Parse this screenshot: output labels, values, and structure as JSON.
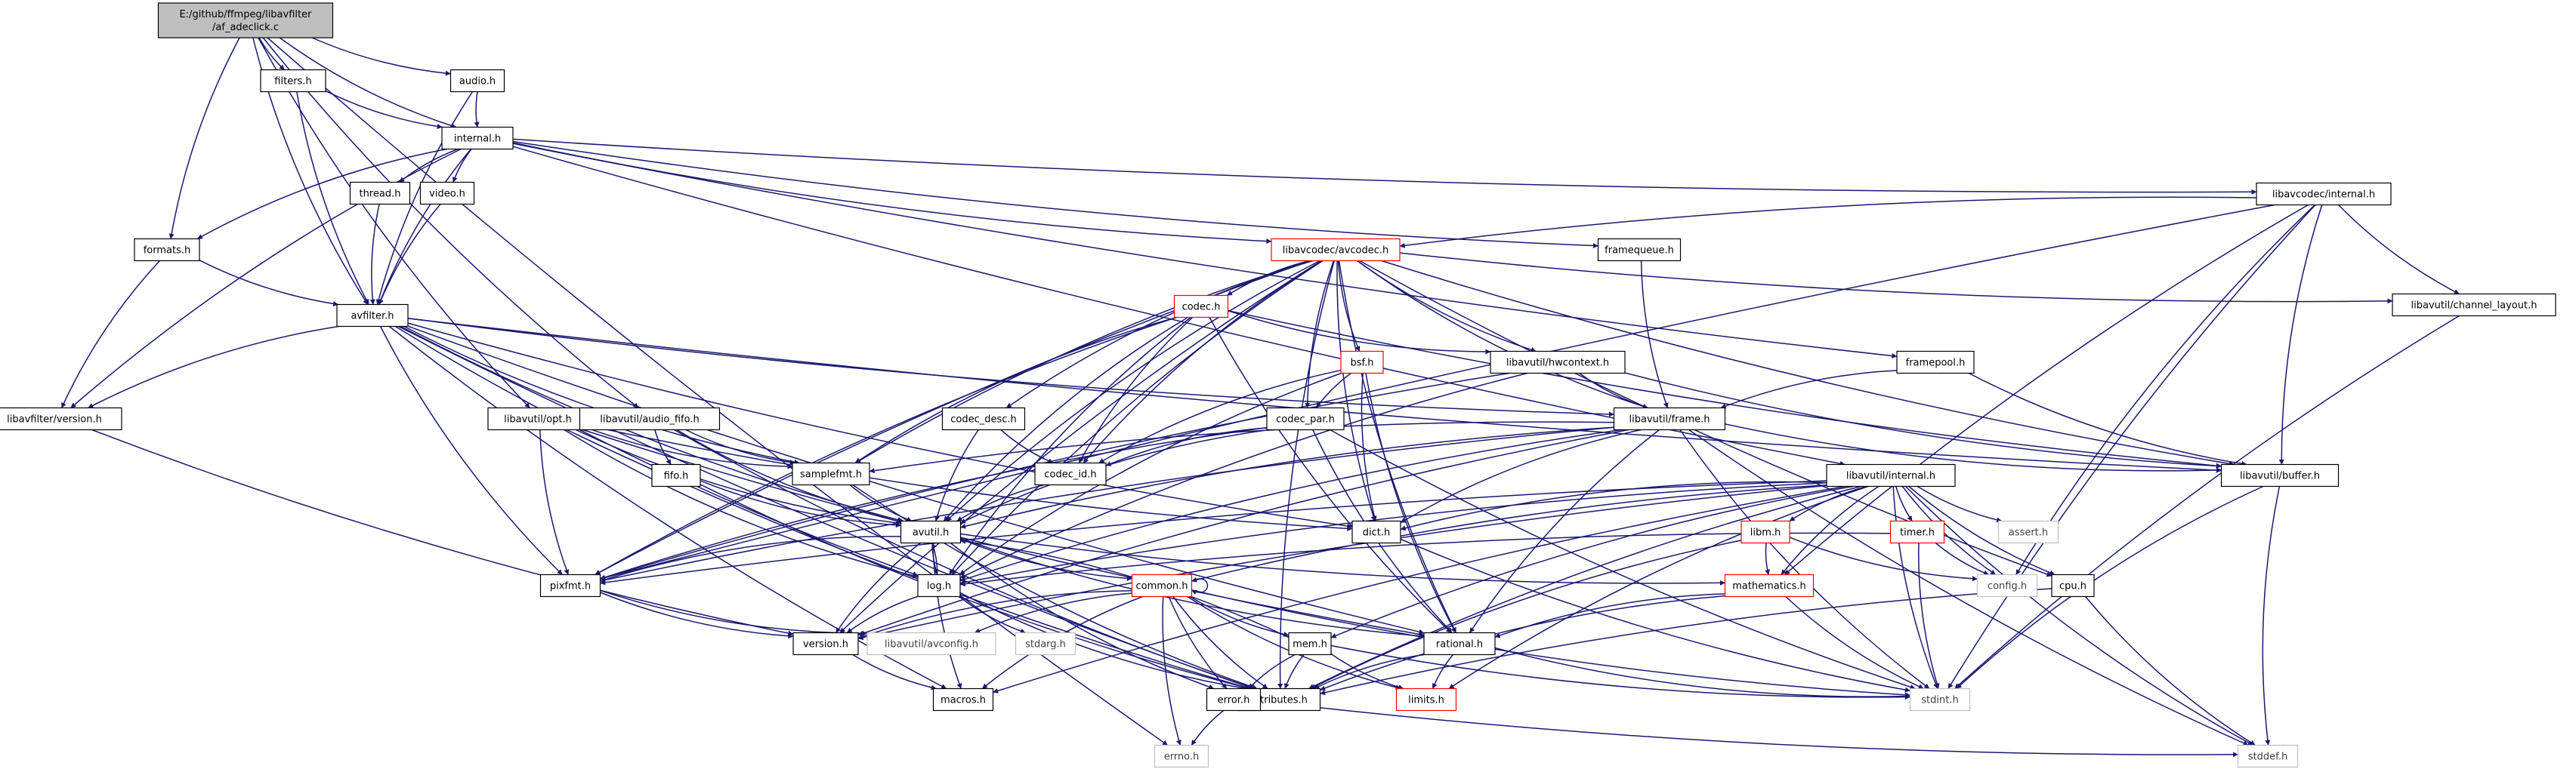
{
  "diagram": {
    "colors": {
      "edge": "#191970",
      "node_border": "#000000",
      "root_fill": "#bfbfbf",
      "truncated_border": "#ff0000",
      "external_border": "#bfbfbf",
      "external_text": "#404040"
    },
    "nodes": [
      {
        "id": "root",
        "lines": [
          "E:/github/ffmpeg/libavfilter",
          "/af_adeclick.c"
        ],
        "style": "root"
      },
      {
        "id": "filters_h",
        "lines": [
          "filters.h"
        ],
        "style": "normal"
      },
      {
        "id": "audio_h",
        "lines": [
          "audio.h"
        ],
        "style": "normal"
      },
      {
        "id": "internal_h",
        "lines": [
          "internal.h"
        ],
        "style": "normal"
      },
      {
        "id": "thread_h",
        "lines": [
          "thread.h"
        ],
        "style": "normal"
      },
      {
        "id": "video_h",
        "lines": [
          "video.h"
        ],
        "style": "normal"
      },
      {
        "id": "formats_h",
        "lines": [
          "formats.h"
        ],
        "style": "normal"
      },
      {
        "id": "avfilter_h",
        "lines": [
          "avfilter.h"
        ],
        "style": "normal"
      },
      {
        "id": "lavf_version_h",
        "lines": [
          "libavfilter/version.h"
        ],
        "style": "normal"
      },
      {
        "id": "opt_h",
        "lines": [
          "libavutil/opt.h"
        ],
        "style": "normal"
      },
      {
        "id": "audio_fifo_h",
        "lines": [
          "libavutil/audio_fifo.h"
        ],
        "style": "normal"
      },
      {
        "id": "fifo_h",
        "lines": [
          "fifo.h"
        ],
        "style": "normal"
      },
      {
        "id": "samplefmt_h",
        "lines": [
          "samplefmt.h"
        ],
        "style": "normal"
      },
      {
        "id": "avutil_h",
        "lines": [
          "avutil.h"
        ],
        "style": "normal"
      },
      {
        "id": "pixfmt_h",
        "lines": [
          "pixfmt.h"
        ],
        "style": "normal"
      },
      {
        "id": "log_h",
        "lines": [
          "log.h"
        ],
        "style": "normal"
      },
      {
        "id": "version_h",
        "lines": [
          "version.h"
        ],
        "style": "normal"
      },
      {
        "id": "avconfig_h",
        "lines": [
          "libavutil/avconfig.h"
        ],
        "style": "external"
      },
      {
        "id": "stdarg_h",
        "lines": [
          "stdarg.h"
        ],
        "style": "external"
      },
      {
        "id": "macros_h",
        "lines": [
          "macros.h"
        ],
        "style": "normal"
      },
      {
        "id": "attributes_h",
        "lines": [
          "attributes.h"
        ],
        "style": "normal"
      },
      {
        "id": "errno_h",
        "lines": [
          "errno.h"
        ],
        "style": "external"
      },
      {
        "id": "error_h",
        "lines": [
          "error.h"
        ],
        "style": "normal"
      },
      {
        "id": "common_h",
        "lines": [
          "common.h"
        ],
        "style": "truncated"
      },
      {
        "id": "mem_h",
        "lines": [
          "mem.h"
        ],
        "style": "normal"
      },
      {
        "id": "limits_h",
        "lines": [
          "limits.h"
        ],
        "style": "truncated"
      },
      {
        "id": "rational_h",
        "lines": [
          "rational.h"
        ],
        "style": "normal"
      },
      {
        "id": "stdint_h",
        "lines": [
          "stdint.h"
        ],
        "style": "external"
      },
      {
        "id": "stddef_h",
        "lines": [
          "stddef.h"
        ],
        "style": "external"
      },
      {
        "id": "dict_h",
        "lines": [
          "dict.h"
        ],
        "style": "normal"
      },
      {
        "id": "codec_desc_h",
        "lines": [
          "codec_desc.h"
        ],
        "style": "normal"
      },
      {
        "id": "codec_id_h",
        "lines": [
          "codec_id.h"
        ],
        "style": "normal"
      },
      {
        "id": "codec_h",
        "lines": [
          "codec.h"
        ],
        "style": "truncated"
      },
      {
        "id": "bsf_h",
        "lines": [
          "bsf.h"
        ],
        "style": "truncated"
      },
      {
        "id": "codec_par_h",
        "lines": [
          "codec_par.h"
        ],
        "style": "normal"
      },
      {
        "id": "avcodec_h",
        "lines": [
          "libavcodec/avcodec.h"
        ],
        "style": "truncated"
      },
      {
        "id": "hwcontext_h",
        "lines": [
          "libavutil/hwcontext.h"
        ],
        "style": "normal"
      },
      {
        "id": "frame_h",
        "lines": [
          "libavutil/frame.h"
        ],
        "style": "normal"
      },
      {
        "id": "framequeue_h",
        "lines": [
          "framequeue.h"
        ],
        "style": "normal"
      },
      {
        "id": "framepool_h",
        "lines": [
          "framepool.h"
        ],
        "style": "normal"
      },
      {
        "id": "lavc_internal_h",
        "lines": [
          "libavcodec/internal.h"
        ],
        "style": "normal"
      },
      {
        "id": "channel_layout_h",
        "lines": [
          "libavutil/channel_layout.h"
        ],
        "style": "normal"
      },
      {
        "id": "buffer_h",
        "lines": [
          "libavutil/buffer.h"
        ],
        "style": "normal"
      },
      {
        "id": "lavu_internal_h",
        "lines": [
          "libavutil/internal.h"
        ],
        "style": "normal"
      },
      {
        "id": "libm_h",
        "lines": [
          "libm.h"
        ],
        "style": "truncated"
      },
      {
        "id": "timer_h",
        "lines": [
          "timer.h"
        ],
        "style": "truncated"
      },
      {
        "id": "assert_h",
        "lines": [
          "assert.h"
        ],
        "style": "external"
      },
      {
        "id": "config_h",
        "lines": [
          "config.h"
        ],
        "style": "external"
      },
      {
        "id": "mathematics_h",
        "lines": [
          "mathematics.h"
        ],
        "style": "truncated"
      },
      {
        "id": "cpu_h",
        "lines": [
          "cpu.h"
        ],
        "style": "normal"
      }
    ],
    "edges": [
      [
        "root",
        "filters_h"
      ],
      [
        "root",
        "audio_h"
      ],
      [
        "root",
        "internal_h"
      ],
      [
        "root",
        "formats_h"
      ],
      [
        "root",
        "avfilter_h"
      ],
      [
        "root",
        "opt_h"
      ],
      [
        "root",
        "audio_fifo_h"
      ],
      [
        "root",
        "errno_h"
      ],
      [
        "filters_h",
        "internal_h"
      ],
      [
        "filters_h",
        "avfilter_h"
      ],
      [
        "audio_h",
        "internal_h"
      ],
      [
        "audio_h",
        "avfilter_h"
      ],
      [
        "internal_h",
        "thread_h"
      ],
      [
        "internal_h",
        "video_h"
      ],
      [
        "internal_h",
        "formats_h"
      ],
      [
        "internal_h",
        "avfilter_h"
      ],
      [
        "internal_h",
        "lavf_version_h"
      ],
      [
        "internal_h",
        "avcodec_h"
      ],
      [
        "internal_h",
        "framequeue_h"
      ],
      [
        "internal_h",
        "framepool_h"
      ],
      [
        "internal_h",
        "lavc_internal_h"
      ],
      [
        "internal_h",
        "lavu_internal_h"
      ],
      [
        "thread_h",
        "avfilter_h"
      ],
      [
        "video_h",
        "avfilter_h"
      ],
      [
        "formats_h",
        "avfilter_h"
      ],
      [
        "formats_h",
        "lavf_version_h"
      ],
      [
        "avfilter_h",
        "lavf_version_h"
      ],
      [
        "avfilter_h",
        "samplefmt_h"
      ],
      [
        "avfilter_h",
        "avutil_h"
      ],
      [
        "avfilter_h",
        "pixfmt_h"
      ],
      [
        "avfilter_h",
        "log_h"
      ],
      [
        "avfilter_h",
        "dict_h"
      ],
      [
        "avfilter_h",
        "rational_h"
      ],
      [
        "avfilter_h",
        "frame_h"
      ],
      [
        "avfilter_h",
        "buffer_h"
      ],
      [
        "avfilter_h",
        "attributes_h"
      ],
      [
        "avfilter_h",
        "macros_h"
      ],
      [
        "lavf_version_h",
        "version_h"
      ],
      [
        "opt_h",
        "samplefmt_h"
      ],
      [
        "opt_h",
        "avutil_h"
      ],
      [
        "opt_h",
        "pixfmt_h"
      ],
      [
        "opt_h",
        "log_h"
      ],
      [
        "opt_h",
        "dict_h"
      ],
      [
        "opt_h",
        "rational_h"
      ],
      [
        "opt_h",
        "attributes_h"
      ],
      [
        "audio_fifo_h",
        "fifo_h"
      ],
      [
        "audio_fifo_h",
        "samplefmt_h"
      ],
      [
        "audio_fifo_h",
        "avutil_h"
      ],
      [
        "audio_fifo_h",
        "attributes_h"
      ],
      [
        "fifo_h",
        "avutil_h"
      ],
      [
        "fifo_h",
        "attributes_h"
      ],
      [
        "samplefmt_h",
        "avutil_h"
      ],
      [
        "samplefmt_h",
        "attributes_h"
      ],
      [
        "avutil_h",
        "pixfmt_h"
      ],
      [
        "avutil_h",
        "log_h"
      ],
      [
        "avutil_h",
        "version_h"
      ],
      [
        "avutil_h",
        "macros_h"
      ],
      [
        "avutil_h",
        "common_h"
      ],
      [
        "avutil_h",
        "error_h"
      ],
      [
        "avutil_h",
        "rational_h"
      ],
      [
        "avutil_h",
        "mathematics_h"
      ],
      [
        "pixfmt_h",
        "version_h"
      ],
      [
        "pixfmt_h",
        "avconfig_h"
      ],
      [
        "log_h",
        "avutil_h"
      ],
      [
        "log_h",
        "version_h"
      ],
      [
        "log_h",
        "attributes_h"
      ],
      [
        "log_h",
        "stdarg_h"
      ],
      [
        "version_h",
        "macros_h"
      ],
      [
        "common_h",
        "common_h"
      ],
      [
        "common_h",
        "attributes_h"
      ],
      [
        "common_h",
        "macros_h"
      ],
      [
        "common_h",
        "version_h"
      ],
      [
        "common_h",
        "mem_h"
      ],
      [
        "common_h",
        "error_h"
      ],
      [
        "common_h",
        "avconfig_h"
      ],
      [
        "common_h",
        "errno_h"
      ],
      [
        "common_h",
        "limits_h"
      ],
      [
        "common_h",
        "stdint_h"
      ],
      [
        "mem_h",
        "attributes_h"
      ],
      [
        "mem_h",
        "error_h"
      ],
      [
        "mem_h",
        "avutil_h"
      ],
      [
        "mem_h",
        "limits_h"
      ],
      [
        "mem_h",
        "stdint_h"
      ],
      [
        "error_h",
        "errno_h"
      ],
      [
        "error_h",
        "stddef_h"
      ],
      [
        "rational_h",
        "attributes_h"
      ],
      [
        "rational_h",
        "limits_h"
      ],
      [
        "rational_h",
        "stdint_h"
      ],
      [
        "dict_h",
        "stdint_h"
      ],
      [
        "codec_desc_h",
        "avutil_h"
      ],
      [
        "codec_desc_h",
        "codec_id_h"
      ],
      [
        "codec_id_h",
        "avutil_h"
      ],
      [
        "codec_h",
        "samplefmt_h"
      ],
      [
        "codec_h",
        "codec_id_h"
      ],
      [
        "codec_h",
        "avutil_h"
      ],
      [
        "codec_h",
        "pixfmt_h"
      ],
      [
        "codec_h",
        "log_h"
      ],
      [
        "codec_h",
        "rational_h"
      ],
      [
        "codec_h",
        "hwcontext_h"
      ],
      [
        "codec_h",
        "buffer_h"
      ],
      [
        "bsf_h",
        "codec_id_h"
      ],
      [
        "bsf_h",
        "codec_par_h"
      ],
      [
        "bsf_h",
        "dict_h"
      ],
      [
        "bsf_h",
        "log_h"
      ],
      [
        "bsf_h",
        "rational_h"
      ],
      [
        "codec_par_h",
        "avutil_h"
      ],
      [
        "codec_par_h",
        "codec_id_h"
      ],
      [
        "codec_par_h",
        "pixfmt_h"
      ],
      [
        "codec_par_h",
        "rational_h"
      ],
      [
        "codec_par_h",
        "stdint_h"
      ],
      [
        "avcodec_h",
        "codec_h"
      ],
      [
        "avcodec_h",
        "bsf_h"
      ],
      [
        "avcodec_h",
        "codec_desc_h"
      ],
      [
        "avcodec_h",
        "codec_id_h"
      ],
      [
        "avcodec_h",
        "codec_par_h"
      ],
      [
        "avcodec_h",
        "samplefmt_h"
      ],
      [
        "avcodec_h",
        "avutil_h"
      ],
      [
        "avcodec_h",
        "pixfmt_h"
      ],
      [
        "avcodec_h",
        "log_h"
      ],
      [
        "avcodec_h",
        "dict_h"
      ],
      [
        "avcodec_h",
        "rational_h"
      ],
      [
        "avcodec_h",
        "frame_h"
      ],
      [
        "avcodec_h",
        "hwcontext_h"
      ],
      [
        "avcodec_h",
        "buffer_h"
      ],
      [
        "avcodec_h",
        "attributes_h"
      ],
      [
        "avcodec_h",
        "channel_layout_h"
      ],
      [
        "avcodec_h",
        "version_h"
      ],
      [
        "avcodec_h",
        "cpu_h"
      ],
      [
        "hwcontext_h",
        "frame_h"
      ],
      [
        "hwcontext_h",
        "buffer_h"
      ],
      [
        "hwcontext_h",
        "pixfmt_h"
      ],
      [
        "hwcontext_h",
        "log_h"
      ],
      [
        "frame_h",
        "avutil_h"
      ],
      [
        "frame_h",
        "buffer_h"
      ],
      [
        "frame_h",
        "dict_h"
      ],
      [
        "frame_h",
        "rational_h"
      ],
      [
        "frame_h",
        "samplefmt_h"
      ],
      [
        "frame_h",
        "pixfmt_h"
      ],
      [
        "frame_h",
        "log_h"
      ],
      [
        "frame_h",
        "version_h"
      ],
      [
        "frame_h",
        "stddef_h"
      ],
      [
        "frame_h",
        "stdint_h"
      ],
      [
        "framequeue_h",
        "frame_h"
      ],
      [
        "framepool_h",
        "buffer_h"
      ],
      [
        "framepool_h",
        "frame_h"
      ],
      [
        "lavc_internal_h",
        "avcodec_h"
      ],
      [
        "lavc_internal_h",
        "buffer_h"
      ],
      [
        "lavc_internal_h",
        "channel_layout_h"
      ],
      [
        "lavc_internal_h",
        "mathematics_h"
      ],
      [
        "lavc_internal_h",
        "pixfmt_h"
      ],
      [
        "lavc_internal_h",
        "config_h"
      ],
      [
        "lavc_internal_h",
        "stdint_h"
      ],
      [
        "channel_layout_h",
        "stdint_h"
      ],
      [
        "buffer_h",
        "stddef_h"
      ],
      [
        "buffer_h",
        "stdint_h"
      ],
      [
        "lavu_internal_h",
        "libm_h"
      ],
      [
        "lavu_internal_h",
        "timer_h"
      ],
      [
        "lavu_internal_h",
        "assert_h"
      ],
      [
        "lavu_internal_h",
        "config_h"
      ],
      [
        "lavu_internal_h",
        "cpu_h"
      ],
      [
        "lavu_internal_h",
        "mathematics_h"
      ],
      [
        "lavu_internal_h",
        "dict_h"
      ],
      [
        "lavu_internal_h",
        "log_h"
      ],
      [
        "lavu_internal_h",
        "pixfmt_h"
      ],
      [
        "lavu_internal_h",
        "version_h"
      ],
      [
        "lavu_internal_h",
        "attributes_h"
      ],
      [
        "lavu_internal_h",
        "macros_h"
      ],
      [
        "lavu_internal_h",
        "mem_h"
      ],
      [
        "lavu_internal_h",
        "common_h"
      ],
      [
        "lavu_internal_h",
        "limits_h"
      ],
      [
        "lavu_internal_h",
        "stdint_h"
      ],
      [
        "lavu_internal_h",
        "stddef_h"
      ],
      [
        "libm_h",
        "attributes_h"
      ],
      [
        "libm_h",
        "config_h"
      ],
      [
        "libm_h",
        "mathematics_h"
      ],
      [
        "timer_h",
        "log_h"
      ],
      [
        "timer_h",
        "config_h"
      ],
      [
        "timer_h",
        "stdint_h"
      ],
      [
        "mathematics_h",
        "attributes_h"
      ],
      [
        "mathematics_h",
        "rational_h"
      ],
      [
        "mathematics_h",
        "stdint_h"
      ],
      [
        "cpu_h",
        "attributes_h"
      ],
      [
        "cpu_h",
        "stddef_h"
      ]
    ]
  }
}
